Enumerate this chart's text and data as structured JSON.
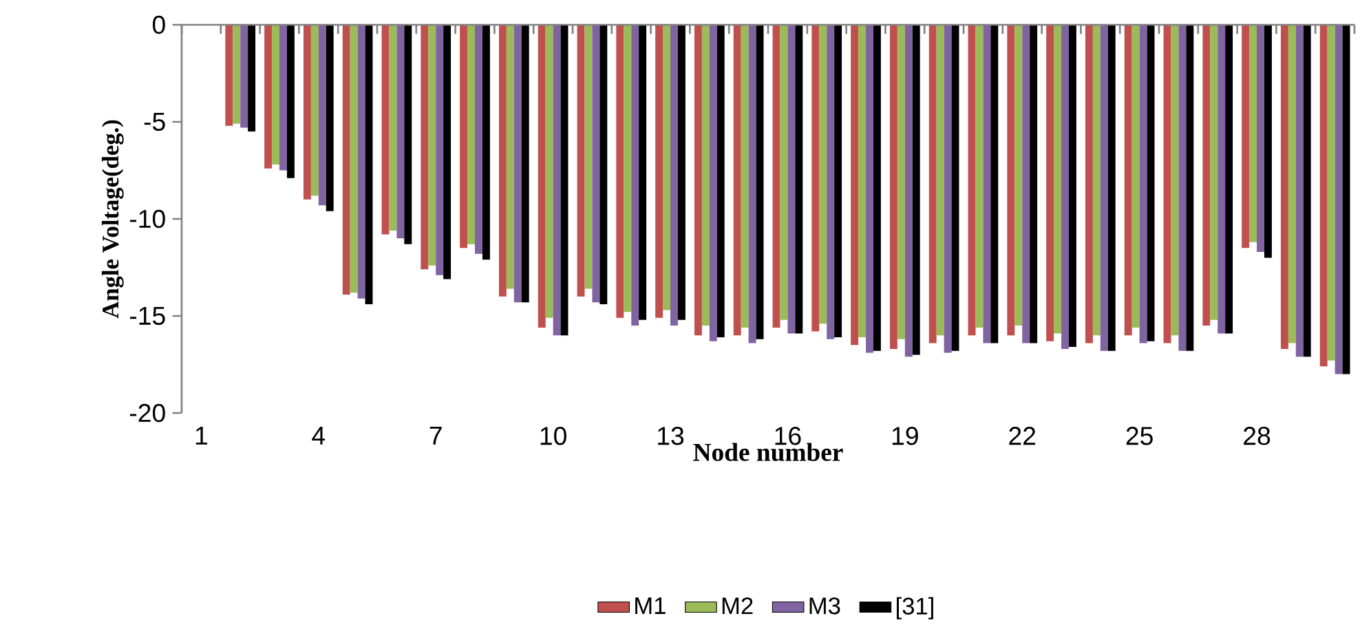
{
  "chart_data": {
    "type": "bar",
    "xlabel": "Node number",
    "ylabel": "Angle Voltage(deg.)",
    "categories": [
      "1",
      null,
      null,
      "4",
      null,
      null,
      "7",
      null,
      null,
      "10",
      null,
      null,
      "13",
      null,
      null,
      "16",
      null,
      null,
      "19",
      null,
      null,
      "22",
      null,
      null,
      "25",
      null,
      null,
      "28",
      null,
      null
    ],
    "series": [
      {
        "name": "M1",
        "color": "#c0504d",
        "values": [
          0,
          -5.2,
          -7.4,
          -9.0,
          -13.9,
          -10.8,
          -12.6,
          -11.5,
          -14.0,
          -15.6,
          -14.0,
          -15.1,
          -15.1,
          -16.0,
          -16.0,
          -15.6,
          -15.8,
          -16.5,
          -16.7,
          -16.4,
          -16.0,
          -16.0,
          -16.3,
          -16.4,
          -16.0,
          -16.4,
          -15.5,
          -11.5,
          -16.7,
          -17.6
        ]
      },
      {
        "name": "M2",
        "color": "#9bbb59",
        "values": [
          0,
          -5.1,
          -7.2,
          -8.8,
          -13.8,
          -10.6,
          -12.4,
          -11.3,
          -13.6,
          -15.1,
          -13.6,
          -14.8,
          -14.7,
          -15.5,
          -15.6,
          -15.2,
          -15.4,
          -16.1,
          -16.2,
          -16.0,
          -15.6,
          -15.5,
          -15.9,
          -16.0,
          -15.6,
          -16.0,
          -15.2,
          -11.2,
          -16.4,
          -17.3
        ]
      },
      {
        "name": "M3",
        "color": "#8064a2",
        "values": [
          0,
          -5.3,
          -7.5,
          -9.3,
          -14.1,
          -11.0,
          -12.9,
          -11.8,
          -14.3,
          -16.0,
          -14.3,
          -15.5,
          -15.5,
          -16.3,
          -16.4,
          -15.9,
          -16.2,
          -16.9,
          -17.1,
          -16.9,
          -16.4,
          -16.4,
          -16.7,
          -16.8,
          -16.4,
          -16.8,
          -15.9,
          -11.7,
          -17.1,
          -18.0
        ]
      },
      {
        "name": "[31]",
        "color": "#000000",
        "values": [
          0,
          -5.5,
          -7.9,
          -9.6,
          -14.4,
          -11.3,
          -13.1,
          -12.1,
          -14.3,
          -16.0,
          -14.4,
          -15.2,
          -15.2,
          -16.1,
          -16.2,
          -15.9,
          -16.1,
          -16.8,
          -17.0,
          -16.8,
          -16.4,
          -16.4,
          -16.6,
          -16.8,
          -16.3,
          -16.8,
          -15.9,
          -12.0,
          -17.1,
          -18.0
        ]
      }
    ],
    "ylim": [
      -20,
      0
    ],
    "yticks": [
      -20,
      -15,
      -10,
      -5,
      0
    ],
    "legend": "bottom"
  }
}
